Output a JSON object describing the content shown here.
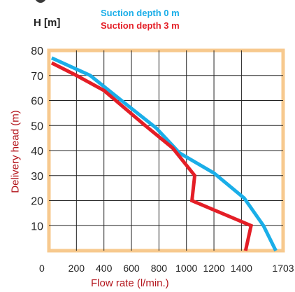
{
  "chart_data": {
    "type": "line",
    "unit_label": "H [m]",
    "xlabel": "Flow rate (l/min.)",
    "ylabel": "Delivery head (m)",
    "xlim": [
      0,
      1703
    ],
    "ylim": [
      0,
      80
    ],
    "x_ticks": [
      {
        "value": 0,
        "label": "0"
      },
      {
        "value": 200,
        "label": "200"
      },
      {
        "value": 400,
        "label": "400"
      },
      {
        "value": 600,
        "label": "600"
      },
      {
        "value": 800,
        "label": "800"
      },
      {
        "value": 1000,
        "label": "1000"
      },
      {
        "value": 1200,
        "label": "1200"
      },
      {
        "value": 1400,
        "label": "1400"
      },
      {
        "value": 1703,
        "label": "1703"
      }
    ],
    "y_ticks": [
      {
        "value": 10,
        "label": "10"
      },
      {
        "value": 20,
        "label": "20"
      },
      {
        "value": 30,
        "label": "30"
      },
      {
        "value": 40,
        "label": "40"
      },
      {
        "value": 50,
        "label": "50"
      },
      {
        "value": 60,
        "label": "60"
      },
      {
        "value": 70,
        "label": "70"
      },
      {
        "value": 80,
        "label": "80"
      }
    ],
    "grid": true,
    "frame_color": "#f7c98e",
    "series": [
      {
        "name": "Suction depth  0 m",
        "color": "#1aaee8",
        "points": [
          [
            20,
            77
          ],
          [
            300,
            70
          ],
          [
            550,
            59
          ],
          [
            780,
            49
          ],
          [
            950,
            39
          ],
          [
            1200,
            31
          ],
          [
            1420,
            21
          ],
          [
            1560,
            10
          ],
          [
            1650,
            0
          ]
        ]
      },
      {
        "name": "Suction depth  3 m",
        "color": "#e41e26",
        "points": [
          [
            20,
            75
          ],
          [
            200,
            70
          ],
          [
            400,
            64
          ],
          [
            700,
            50
          ],
          [
            900,
            41
          ],
          [
            1060,
            30
          ],
          [
            1040,
            20
          ],
          [
            1470,
            10
          ],
          [
            1430,
            0
          ]
        ]
      }
    ]
  }
}
